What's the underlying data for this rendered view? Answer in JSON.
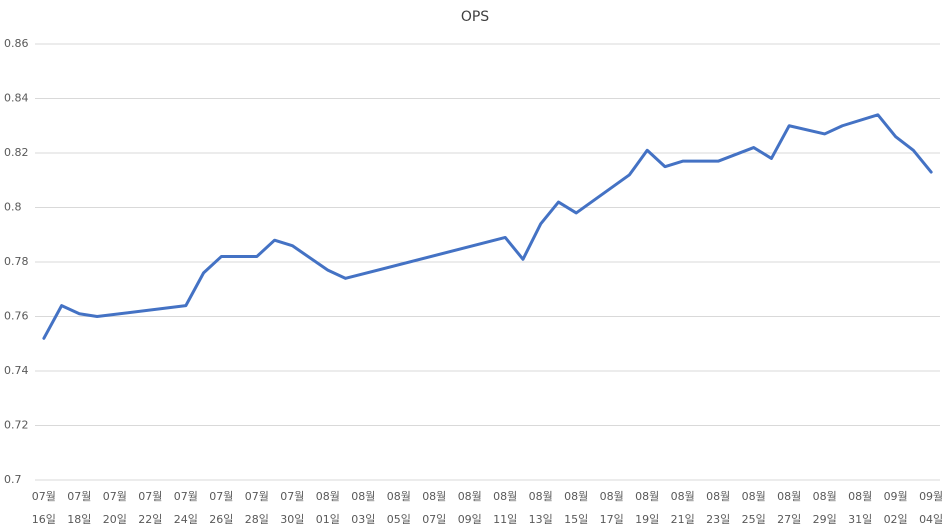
{
  "chart_data": {
    "type": "line",
    "title": "OPS",
    "categories": [
      [
        "07월",
        "16일"
      ],
      null,
      [
        "07월",
        "18일"
      ],
      null,
      [
        "07월",
        "20일"
      ],
      null,
      [
        "07월",
        "22일"
      ],
      null,
      [
        "07월",
        "24일"
      ],
      null,
      [
        "07월",
        "26일"
      ],
      null,
      [
        "07월",
        "28일"
      ],
      null,
      [
        "07월",
        "30일"
      ],
      null,
      [
        "08월",
        "01일"
      ],
      null,
      [
        "08월",
        "03일"
      ],
      null,
      [
        "08월",
        "05일"
      ],
      null,
      [
        "08월",
        "07일"
      ],
      null,
      [
        "08월",
        "09일"
      ],
      null,
      [
        "08월",
        "11일"
      ],
      null,
      [
        "08월",
        "13일"
      ],
      null,
      [
        "08월",
        "15일"
      ],
      null,
      [
        "08월",
        "17일"
      ],
      null,
      [
        "08월",
        "19일"
      ],
      null,
      [
        "08월",
        "21일"
      ],
      null,
      [
        "08월",
        "23일"
      ],
      null,
      [
        "08월",
        "25일"
      ],
      null,
      [
        "08월",
        "27일"
      ],
      null,
      [
        "08월",
        "29일"
      ],
      null,
      [
        "08월",
        "31일"
      ],
      null,
      [
        "09월",
        "02일"
      ],
      null,
      [
        "09월",
        "04일"
      ]
    ],
    "series": [
      {
        "name": "OPS",
        "color": "#4472c4",
        "values": [
          0.752,
          0.764,
          0.761,
          0.76,
          null,
          null,
          null,
          null,
          0.764,
          0.776,
          0.782,
          null,
          0.782,
          0.788,
          0.786,
          null,
          0.777,
          0.774,
          null,
          null,
          null,
          null,
          null,
          null,
          null,
          null,
          0.789,
          0.781,
          0.794,
          0.802,
          0.798,
          null,
          null,
          0.812,
          0.821,
          0.815,
          0.817,
          null,
          0.817,
          null,
          0.822,
          0.818,
          0.83,
          null,
          0.827,
          0.83,
          null,
          0.834,
          0.826,
          0.821,
          0.813
        ]
      }
    ],
    "connect_gaps": true,
    "ylim": [
      0.7,
      0.86
    ],
    "yticks": [
      0.7,
      0.72,
      0.74,
      0.76,
      0.78,
      0.8,
      0.82,
      0.84,
      0.86
    ],
    "grid": true
  }
}
